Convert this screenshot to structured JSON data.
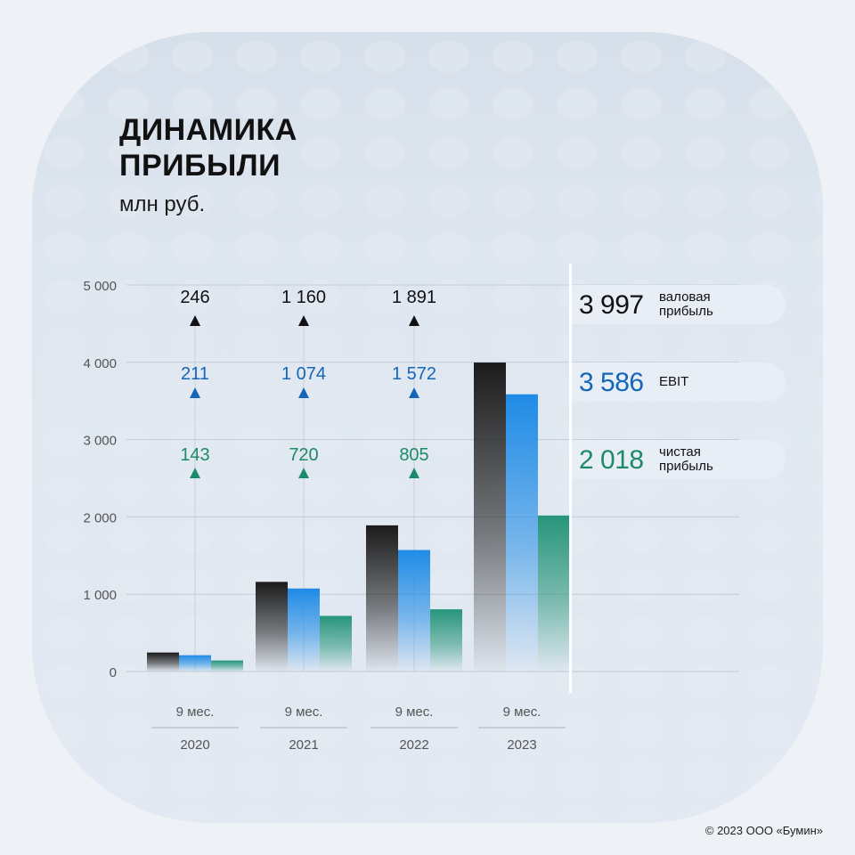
{
  "title_line1": "ДИНАМИКА",
  "title_line2": "ПРИБЫЛИ",
  "subtitle": "млн руб.",
  "copyright": "© 2023 ООО «Бумин»",
  "colors": {
    "gross": "#1b1b1b",
    "ebit": "#1f8be6",
    "net": "#27957a",
    "gross_text": "#111111",
    "ebit_text": "#1565b8",
    "net_text": "#1e8a6c"
  },
  "legend": [
    {
      "value": "3 997",
      "label_line1": "валовая",
      "label_line2": "прибыль",
      "color": "#111111"
    },
    {
      "value": "3 586",
      "label_line1": "EBIT",
      "label_line2": "",
      "color": "#1565b8"
    },
    {
      "value": "2 018",
      "label_line1": "чистая",
      "label_line2": "прибыль",
      "color": "#1e8a6c"
    }
  ],
  "chart_data": {
    "type": "bar",
    "categories": [
      "9 мес.|2020",
      "9 мес.|2021",
      "9 мес.|2022",
      "9 мес.|2023"
    ],
    "category_top": [
      "9 мес.",
      "9 мес.",
      "9 мес.",
      "9 мес."
    ],
    "category_bottom": [
      "2020",
      "2021",
      "2022",
      "2023"
    ],
    "ylim": [
      0,
      5000
    ],
    "yticks": [
      0,
      1000,
      2000,
      3000,
      4000,
      5000
    ],
    "ytick_labels": [
      "0",
      "1 000",
      "2 000",
      "3 000",
      "4 000",
      "5 000"
    ],
    "series": [
      {
        "name": "валовая прибыль",
        "values": [
          246,
          1160,
          1891,
          3997
        ]
      },
      {
        "name": "EBIT",
        "values": [
          211,
          1074,
          1572,
          3586
        ]
      },
      {
        "name": "чистая прибыль",
        "values": [
          143,
          720,
          805,
          2018
        ]
      }
    ],
    "annotations": [
      {
        "series": 0,
        "labels": [
          "246",
          "1 160",
          "1 891"
        ]
      },
      {
        "series": 1,
        "labels": [
          "211",
          "1 074",
          "1 572"
        ]
      },
      {
        "series": 2,
        "labels": [
          "143",
          "720",
          "805"
        ]
      }
    ],
    "grid": true
  }
}
